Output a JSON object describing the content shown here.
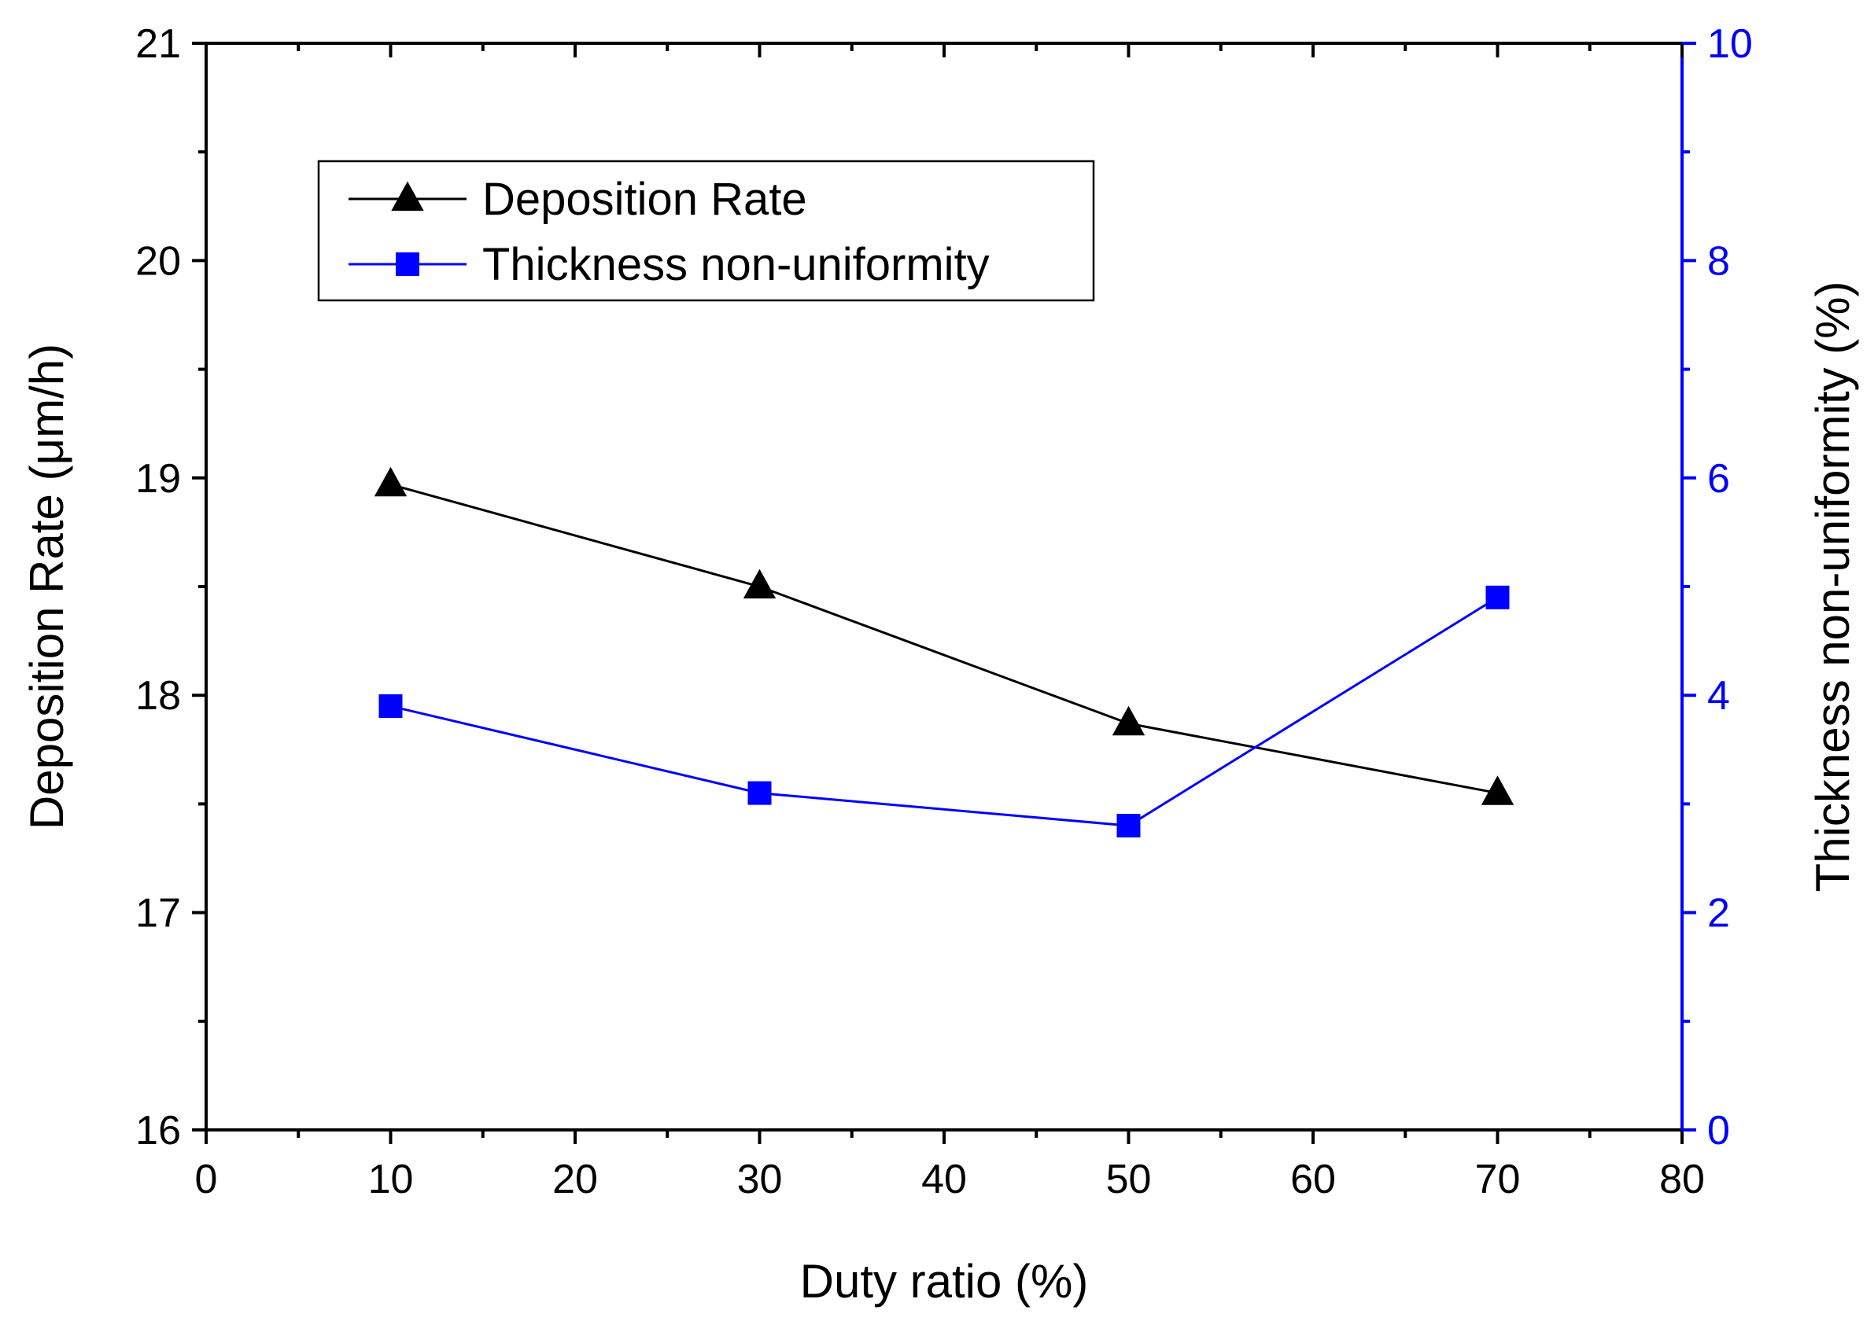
{
  "chart_data": {
    "type": "line",
    "title": "",
    "x": [
      10,
      30,
      50,
      70
    ],
    "xlabel": "Duty ratio (%)",
    "xlim": [
      0,
      80
    ],
    "xticks": [
      0,
      10,
      20,
      30,
      40,
      50,
      60,
      70,
      80
    ],
    "xtick_labels": [
      "0",
      "10",
      "20",
      "30",
      "40",
      "50",
      "60",
      "70",
      "80"
    ],
    "ylabel_left": "Deposition Rate (μm/h)",
    "ylim_left": [
      16,
      21
    ],
    "yticks_left": [
      16,
      17,
      18,
      19,
      20,
      21
    ],
    "ytick_labels_left": [
      "16",
      "17",
      "18",
      "19",
      "20",
      "21"
    ],
    "ylabel_right": "Thickness non-uniformity (%)",
    "ylim_right": [
      0,
      10
    ],
    "yticks_right": [
      0,
      2,
      4,
      6,
      8,
      10
    ],
    "ytick_labels_right": [
      "0",
      "2",
      "4",
      "6",
      "8",
      "10"
    ],
    "grid": false,
    "legend_position": "top-left",
    "series": [
      {
        "name": "Deposition Rate",
        "axis": "left",
        "marker": "triangle",
        "color": "#000000",
        "values": [
          18.97,
          18.5,
          17.87,
          17.55
        ]
      },
      {
        "name": "Thickness non-uniformity",
        "axis": "right",
        "marker": "square",
        "color": "#0000ff",
        "values": [
          3.9,
          3.1,
          2.8,
          4.9
        ]
      }
    ],
    "colors": {
      "axis_left": "#000000",
      "axis_right": "#0000ff"
    }
  }
}
